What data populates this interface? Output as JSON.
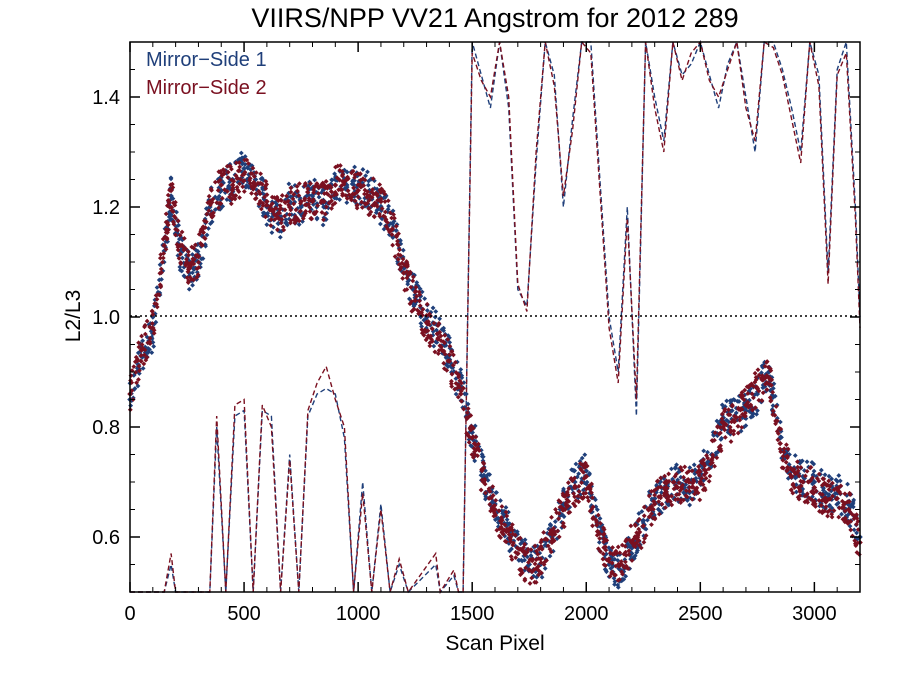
{
  "chart_data": {
    "type": "scatter",
    "title": "VIIRS/NPP VV21 Angstrom for 2012 289",
    "xlabel": "Scan Pixel",
    "ylabel": "L2/L3",
    "xlim": [
      0,
      3200
    ],
    "ylim": [
      0.5,
      1.5
    ],
    "xticks": [
      0,
      500,
      1000,
      1500,
      2000,
      2500,
      3000
    ],
    "yticks": [
      0.6,
      0.8,
      1.0,
      1.2,
      1.4
    ],
    "ytick_labels": [
      "0.6",
      "0.8",
      "1.0",
      "1.2",
      "1.4"
    ],
    "legend_position": "top-left",
    "reference_line": {
      "y": 1.0,
      "style": "dotted"
    },
    "colors": {
      "mirror_side_1": "#1f3f7a",
      "mirror_side_2": "#7a1020"
    },
    "series": [
      {
        "name": "Mirror−Side 1",
        "marker": "diamond",
        "color": "#1f3f7a",
        "x": [
          0,
          50,
          100,
          150,
          180,
          220,
          260,
          300,
          350,
          400,
          450,
          500,
          550,
          600,
          650,
          700,
          750,
          800,
          850,
          900,
          950,
          1000,
          1050,
          1100,
          1150,
          1200,
          1250,
          1300,
          1350,
          1400,
          1450,
          1500,
          1550,
          1600,
          1650,
          1700,
          1750,
          1800,
          1850,
          1900,
          1950,
          2000,
          2050,
          2100,
          2150,
          2200,
          2250,
          2300,
          2350,
          2400,
          2450,
          2500,
          2550,
          2600,
          2650,
          2700,
          2750,
          2800,
          2850,
          2900,
          2950,
          3000,
          3050,
          3100,
          3150,
          3200
        ],
        "y": [
          0.85,
          0.93,
          0.97,
          1.12,
          1.22,
          1.12,
          1.08,
          1.1,
          1.2,
          1.23,
          1.25,
          1.27,
          1.25,
          1.2,
          1.17,
          1.21,
          1.2,
          1.22,
          1.2,
          1.25,
          1.24,
          1.24,
          1.23,
          1.2,
          1.17,
          1.09,
          1.04,
          1.0,
          0.97,
          0.93,
          0.87,
          0.79,
          0.71,
          0.66,
          0.62,
          0.58,
          0.55,
          0.55,
          0.6,
          0.66,
          0.7,
          0.72,
          0.62,
          0.55,
          0.54,
          0.58,
          0.63,
          0.67,
          0.68,
          0.7,
          0.69,
          0.71,
          0.75,
          0.81,
          0.82,
          0.83,
          0.86,
          0.9,
          0.78,
          0.72,
          0.71,
          0.7,
          0.68,
          0.68,
          0.66,
          0.6
        ]
      },
      {
        "name": "Mirror−Side 2",
        "marker": "diamond",
        "color": "#7a1020",
        "x": [
          0,
          50,
          100,
          150,
          180,
          220,
          260,
          300,
          350,
          400,
          450,
          500,
          550,
          600,
          650,
          700,
          750,
          800,
          850,
          900,
          950,
          1000,
          1050,
          1100,
          1150,
          1200,
          1250,
          1300,
          1350,
          1400,
          1450,
          1500,
          1550,
          1600,
          1650,
          1700,
          1750,
          1800,
          1850,
          1900,
          1950,
          2000,
          2050,
          2100,
          2150,
          2200,
          2250,
          2300,
          2350,
          2400,
          2450,
          2500,
          2550,
          2600,
          2650,
          2700,
          2750,
          2800,
          2850,
          2900,
          2950,
          3000,
          3050,
          3100,
          3150,
          3200
        ],
        "y": [
          0.86,
          0.94,
          0.98,
          1.13,
          1.23,
          1.13,
          1.09,
          1.11,
          1.21,
          1.24,
          1.24,
          1.26,
          1.24,
          1.21,
          1.18,
          1.2,
          1.21,
          1.21,
          1.21,
          1.24,
          1.25,
          1.23,
          1.22,
          1.21,
          1.16,
          1.08,
          1.03,
          0.99,
          0.96,
          0.92,
          0.86,
          0.78,
          0.7,
          0.65,
          0.61,
          0.57,
          0.54,
          0.56,
          0.61,
          0.65,
          0.69,
          0.71,
          0.61,
          0.56,
          0.55,
          0.59,
          0.62,
          0.66,
          0.69,
          0.69,
          0.7,
          0.7,
          0.74,
          0.8,
          0.81,
          0.84,
          0.87,
          0.89,
          0.77,
          0.71,
          0.7,
          0.69,
          0.67,
          0.67,
          0.65,
          0.59
        ]
      },
      {
        "name": "",
        "style": "dashed",
        "color": "#1f3f7a",
        "x": [
          0,
          150,
          180,
          200,
          350,
          380,
          420,
          460,
          500,
          540,
          580,
          620,
          660,
          700,
          740,
          780,
          820,
          860,
          900,
          940,
          980,
          1020,
          1060,
          1100,
          1140,
          1180,
          1220,
          1340,
          1360,
          1420,
          1440,
          1460,
          1500,
          1540,
          1580,
          1620,
          1660,
          1700,
          1740,
          1780,
          1820,
          1860,
          1900,
          1940,
          1980,
          2020,
          2060,
          2100,
          2140,
          2180,
          2220,
          2260,
          2300,
          2340,
          2380,
          2420,
          2460,
          2500,
          2540,
          2580,
          2620,
          2660,
          2700,
          2740,
          2780,
          2820,
          2860,
          2900,
          2940,
          2980,
          3020,
          3060,
          3100,
          3140,
          3180,
          3200
        ],
        "y": [
          0.5,
          0.5,
          0.55,
          0.5,
          0.5,
          0.8,
          0.5,
          0.82,
          0.83,
          0.5,
          0.83,
          0.82,
          0.5,
          0.75,
          0.5,
          0.82,
          0.86,
          0.87,
          0.86,
          0.78,
          0.5,
          0.7,
          0.5,
          0.66,
          0.5,
          0.55,
          0.5,
          0.55,
          0.5,
          0.53,
          0.5,
          0.5,
          1.5,
          1.44,
          1.38,
          1.5,
          1.38,
          1.05,
          1.02,
          1.28,
          1.5,
          1.44,
          1.2,
          1.36,
          1.5,
          1.5,
          1.25,
          1.0,
          0.9,
          1.2,
          0.82,
          1.5,
          1.4,
          1.32,
          1.5,
          1.44,
          1.46,
          1.5,
          1.44,
          1.38,
          1.46,
          1.5,
          1.4,
          1.3,
          1.5,
          1.5,
          1.45,
          1.38,
          1.3,
          1.5,
          1.44,
          1.08,
          1.45,
          1.5,
          1.2,
          1.0
        ]
      },
      {
        "name": "",
        "style": "dashed",
        "color": "#7a1020",
        "x": [
          0,
          150,
          180,
          200,
          350,
          380,
          420,
          460,
          500,
          540,
          580,
          620,
          660,
          700,
          740,
          780,
          820,
          860,
          900,
          940,
          980,
          1020,
          1060,
          1100,
          1140,
          1180,
          1220,
          1340,
          1360,
          1420,
          1440,
          1460,
          1500,
          1540,
          1580,
          1620,
          1660,
          1700,
          1740,
          1780,
          1820,
          1860,
          1900,
          1940,
          1980,
          2020,
          2060,
          2100,
          2140,
          2180,
          2220,
          2260,
          2300,
          2340,
          2380,
          2420,
          2460,
          2500,
          2540,
          2580,
          2620,
          2660,
          2700,
          2740,
          2780,
          2820,
          2860,
          2900,
          2940,
          2980,
          3020,
          3060,
          3100,
          3140,
          3180,
          3200
        ],
        "y": [
          0.5,
          0.5,
          0.57,
          0.5,
          0.5,
          0.82,
          0.5,
          0.84,
          0.85,
          0.5,
          0.84,
          0.8,
          0.5,
          0.74,
          0.5,
          0.83,
          0.88,
          0.91,
          0.85,
          0.8,
          0.5,
          0.68,
          0.5,
          0.65,
          0.5,
          0.56,
          0.5,
          0.57,
          0.5,
          0.54,
          0.5,
          0.5,
          1.48,
          1.43,
          1.4,
          1.5,
          1.4,
          1.06,
          1.01,
          1.3,
          1.5,
          1.42,
          1.22,
          1.34,
          1.5,
          1.48,
          1.23,
          0.98,
          0.88,
          1.18,
          0.85,
          1.5,
          1.38,
          1.3,
          1.5,
          1.43,
          1.48,
          1.5,
          1.43,
          1.4,
          1.45,
          1.5,
          1.38,
          1.32,
          1.5,
          1.49,
          1.44,
          1.36,
          1.28,
          1.5,
          1.42,
          1.06,
          1.44,
          1.48,
          1.18,
          0.98
        ]
      }
    ]
  }
}
